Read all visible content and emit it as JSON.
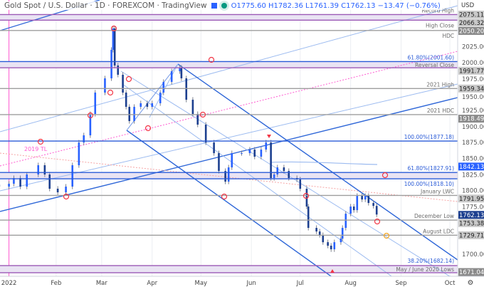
{
  "header": {
    "title": "Gold Spot / U.S. Dollar · 1D · FOREXCOM · TradingView",
    "ohlc": "O1775.60 H1782.36 L1761.39 C1762.13 −13.47 (−0.76%)"
  },
  "axis": {
    "currency": "USD",
    "settings_icon": "gear-icon"
  },
  "colors": {
    "up": "#2962ff",
    "down": "#1c3f8f",
    "level": "#9e9e9e",
    "fib": "#2a5bd7",
    "zone": "#e9e3f3",
    "marker": "#f23645",
    "trendline_2019": "#ff5bd1"
  },
  "chart_data": {
    "type": "candlestick",
    "title": "Gold Spot / U.S. Dollar · 1D · FOREXCOM",
    "ylim": [
      1660,
      2085
    ],
    "x_ticks": [
      {
        "date": "2022-01-03",
        "label": "2022"
      },
      {
        "date": "2022-02-01",
        "label": "Feb"
      },
      {
        "date": "2022-03-01",
        "label": "Mar"
      },
      {
        "date": "2022-04-01",
        "label": "Apr"
      },
      {
        "date": "2022-05-01",
        "label": "May"
      },
      {
        "date": "2022-06-01",
        "label": "Jun"
      },
      {
        "date": "2022-07-01",
        "label": "Jul"
      },
      {
        "date": "2022-08-01",
        "label": "Aug"
      },
      {
        "date": "2022-09-01",
        "label": "Sep"
      },
      {
        "date": "2022-10-01",
        "label": "Oct"
      }
    ],
    "y_ticks": [
      "2025.00",
      "2000.00",
      "1975.00",
      "1950.00",
      "1925.00",
      "1900.00",
      "1875.00",
      "1850.00",
      "1825.00",
      "1800.00",
      "1775.00",
      "1700.00"
    ],
    "closes": [
      [
        "2021-12-28",
        1805.8
      ],
      [
        "2022-01-03",
        1810.3
      ],
      [
        "2022-01-06",
        1819.2
      ],
      [
        "2022-01-10",
        1805.8
      ],
      [
        "2022-01-14",
        1824.8
      ],
      [
        "2022-01-21",
        1839.3
      ],
      [
        "2022-01-25",
        1824.8
      ],
      [
        "2022-01-28",
        1802.5
      ],
      [
        "2022-02-02",
        1796.9
      ],
      [
        "2022-02-07",
        1805.8
      ],
      [
        "2022-02-11",
        1839.3
      ],
      [
        "2022-02-15",
        1874.9
      ],
      [
        "2022-02-18",
        1886.1
      ],
      [
        "2022-02-22",
        1919.5
      ],
      [
        "2022-02-25",
        1953.0
      ],
      [
        "2022-03-03",
        1975.3
      ],
      [
        "2022-03-07",
        2019.9
      ],
      [
        "2022-03-08",
        2053.3
      ],
      [
        "2022-03-09",
        1995.4
      ],
      [
        "2022-03-11",
        1980.9
      ],
      [
        "2022-03-14",
        1953.0
      ],
      [
        "2022-03-16",
        1930.7
      ],
      [
        "2022-03-18",
        1908.4
      ],
      [
        "2022-03-21",
        1930.7
      ],
      [
        "2022-03-25",
        1936.3
      ],
      [
        "2022-03-29",
        1930.7
      ],
      [
        "2022-04-01",
        1936.3
      ],
      [
        "2022-04-06",
        1953.0
      ],
      [
        "2022-04-08",
        1969.7
      ],
      [
        "2022-04-13",
        1986.4
      ],
      [
        "2022-04-18",
        1992.0
      ],
      [
        "2022-04-19",
        1975.3
      ],
      [
        "2022-04-22",
        1941.8
      ],
      [
        "2022-04-26",
        1919.5
      ],
      [
        "2022-04-29",
        1902.8
      ],
      [
        "2022-05-04",
        1874.9
      ],
      [
        "2022-05-09",
        1858.2
      ],
      [
        "2022-05-12",
        1830.3
      ],
      [
        "2022-05-16",
        1813.6
      ],
      [
        "2022-05-18",
        1835.9
      ],
      [
        "2022-05-20",
        1858.2
      ],
      [
        "2022-05-26",
        1858.2
      ],
      [
        "2022-05-31",
        1863.8
      ],
      [
        "2022-06-03",
        1852.6
      ],
      [
        "2022-06-07",
        1863.8
      ],
      [
        "2022-06-10",
        1874.9
      ],
      [
        "2022-06-13",
        1819.2
      ],
      [
        "2022-06-15",
        1824.8
      ],
      [
        "2022-06-17",
        1835.9
      ],
      [
        "2022-06-21",
        1830.3
      ],
      [
        "2022-06-24",
        1819.2
      ],
      [
        "2022-06-29",
        1817.0
      ],
      [
        "2022-07-01",
        1802.5
      ],
      [
        "2022-07-05",
        1774.6
      ],
      [
        "2022-07-06",
        1741.2
      ],
      [
        "2022-07-11",
        1735.6
      ],
      [
        "2022-07-13",
        1730.0
      ],
      [
        "2022-07-15",
        1718.8
      ],
      [
        "2022-07-18",
        1713.3
      ],
      [
        "2022-07-20",
        1707.7
      ],
      [
        "2022-07-22",
        1718.8
      ],
      [
        "2022-07-26",
        1724.4
      ],
      [
        "2022-07-27",
        1741.2
      ],
      [
        "2022-07-29",
        1763.4
      ],
      [
        "2022-08-01",
        1774.6
      ],
      [
        "2022-08-03",
        1769.0
      ],
      [
        "2022-08-05",
        1791.3
      ],
      [
        "2022-08-08",
        1785.7
      ],
      [
        "2022-08-10",
        1791.3
      ],
      [
        "2022-08-12",
        1780.2
      ],
      [
        "2022-08-15",
        1775.6
      ],
      [
        "2022-08-17",
        1762.1
      ]
    ],
    "levels": [
      {
        "price": 2075.11,
        "label": "Record High",
        "tag": "2075.11",
        "kind": "zone-top"
      },
      {
        "price": 2066.32,
        "label": "High Close",
        "tag": "2066.32",
        "kind": "zone-bottom"
      },
      {
        "price": 2050.2,
        "label": "HDC",
        "tag": "2050.20",
        "kind": "level"
      },
      {
        "price": 2001.6,
        "label": "61.80%(2001.60)",
        "tag": "",
        "kind": "fib"
      },
      {
        "price": 1991.77,
        "label": "Reversal Close",
        "tag": "1991.77",
        "kind": "zone-bottom"
      },
      {
        "price": 1959.34,
        "label": "2021 High",
        "tag": "1959.34",
        "kind": "level"
      },
      {
        "price": 1918.49,
        "label": "2021 HDC",
        "tag": "1918.49",
        "kind": "level"
      },
      {
        "price": 1877.18,
        "label": "100.00%(1877.18)",
        "tag": "",
        "kind": "fib"
      },
      {
        "price": 1827.91,
        "label": "61.80%(1827.91)",
        "tag": "",
        "kind": "fib"
      },
      {
        "price": 1818.1,
        "label": "100.00%(1818.10)",
        "tag": "",
        "kind": "fib-zone-bottom"
      },
      {
        "price": 1791.95,
        "label": "January LWC",
        "tag": "1791.95",
        "kind": "level"
      },
      {
        "price": 1753.38,
        "label": "December Low",
        "tag": "1753.38",
        "kind": "level"
      },
      {
        "price": 1729.71,
        "label": "August LDC",
        "tag": "1729.71",
        "kind": "level"
      },
      {
        "price": 1682.14,
        "label": "38.20%(1682.14)",
        "tag": "",
        "kind": "fib-zone-top"
      },
      {
        "price": 1671.04,
        "label": "May / June 2020 Lows",
        "tag": "1671.04",
        "kind": "zone-bottom"
      }
    ],
    "tags": {
      "ma_value": "1842.13",
      "last_price": "1762.13"
    },
    "annotations": {
      "trendline_2019": "2019 TL"
    }
  }
}
